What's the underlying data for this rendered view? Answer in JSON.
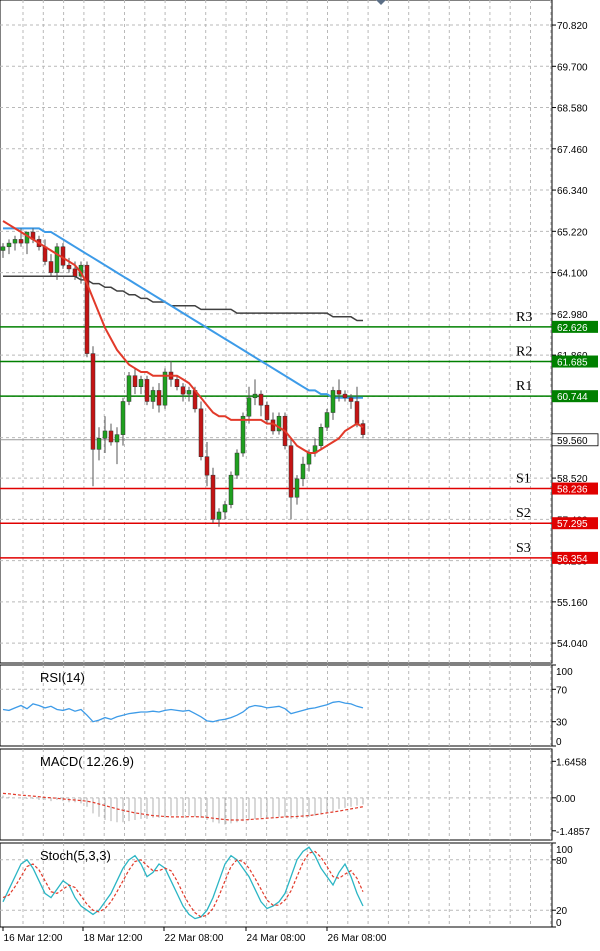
{
  "chart_data": [
    {
      "type": "candlestick",
      "grid": true,
      "y_ticks": [
        "70.820",
        "69.700",
        "68.580",
        "67.460",
        "66.340",
        "65.220",
        "64.100",
        "62.980",
        "61.860",
        "60.740",
        "59.620",
        "58.520",
        "57.400",
        "56.280",
        "55.160",
        "54.040"
      ],
      "ylim": [
        53.5,
        71.5
      ],
      "x_labels": [
        "16 Mar 12:00",
        "18 Mar 12:00",
        "22 Mar 08:00",
        "24 Mar 08:00",
        "26 Mar 08:00"
      ],
      "current_price": "59.560",
      "levels": [
        {
          "name": "R3",
          "value": "62.626",
          "color": "#008000"
        },
        {
          "name": "R2",
          "value": "61.685",
          "color": "#008000"
        },
        {
          "name": "R1",
          "value": "60.744",
          "color": "#008000"
        },
        {
          "name": "S1",
          "value": "58.236",
          "color": "#e00000"
        },
        {
          "name": "S2",
          "value": "57.295",
          "color": "#e00000"
        },
        {
          "name": "S3",
          "value": "56.354",
          "color": "#e00000"
        }
      ],
      "candles": [
        [
          64.7,
          64.9,
          64.5,
          64.8
        ],
        [
          64.8,
          65.0,
          64.6,
          64.9
        ],
        [
          64.9,
          65.1,
          64.7,
          65.0
        ],
        [
          65.0,
          65.3,
          64.8,
          64.9
        ],
        [
          64.9,
          65.1,
          64.6,
          65.2
        ],
        [
          65.2,
          65.3,
          64.9,
          65.0
        ],
        [
          65.0,
          65.1,
          64.7,
          64.8
        ],
        [
          64.8,
          65.0,
          64.3,
          64.4
        ],
        [
          64.4,
          64.6,
          64.0,
          64.1
        ],
        [
          64.1,
          64.9,
          63.9,
          64.8
        ],
        [
          64.8,
          64.9,
          64.2,
          64.3
        ],
        [
          64.3,
          64.5,
          64.1,
          64.2
        ],
        [
          64.2,
          64.4,
          63.9,
          64.0
        ],
        [
          64.0,
          64.4,
          63.8,
          64.3
        ],
        [
          64.3,
          64.4,
          61.8,
          61.9
        ],
        [
          61.9,
          62.1,
          58.3,
          59.3
        ],
        [
          59.3,
          59.9,
          59.0,
          59.6
        ],
        [
          59.6,
          60.2,
          59.2,
          59.8
        ],
        [
          59.8,
          60.0,
          59.4,
          59.5
        ],
        [
          59.5,
          59.9,
          58.9,
          59.7
        ],
        [
          59.7,
          60.7,
          59.4,
          60.6
        ],
        [
          60.6,
          61.4,
          60.5,
          61.3
        ],
        [
          61.3,
          61.5,
          60.8,
          61.0
        ],
        [
          61.0,
          61.3,
          60.8,
          61.2
        ],
        [
          61.2,
          61.3,
          60.5,
          60.6
        ],
        [
          60.6,
          61.0,
          60.4,
          60.9
        ],
        [
          60.9,
          61.1,
          60.3,
          60.5
        ],
        [
          60.5,
          61.5,
          60.4,
          61.4
        ],
        [
          61.4,
          61.7,
          61.0,
          61.2
        ],
        [
          61.2,
          61.3,
          60.9,
          61.0
        ],
        [
          61.0,
          61.1,
          60.6,
          60.8
        ],
        [
          60.8,
          61.0,
          60.6,
          60.9
        ],
        [
          60.9,
          61.0,
          60.3,
          60.4
        ],
        [
          60.4,
          60.6,
          59.0,
          59.1
        ],
        [
          59.1,
          59.5,
          58.3,
          58.6
        ],
        [
          58.6,
          58.8,
          57.3,
          57.4
        ],
        [
          57.4,
          57.7,
          57.2,
          57.6
        ],
        [
          57.6,
          57.9,
          57.4,
          57.8
        ],
        [
          57.8,
          58.7,
          57.7,
          58.6
        ],
        [
          58.6,
          59.3,
          58.5,
          59.2
        ],
        [
          59.2,
          60.3,
          59.1,
          60.2
        ],
        [
          60.2,
          61.0,
          60.0,
          60.7
        ],
        [
          60.7,
          61.2,
          60.5,
          60.8
        ],
        [
          60.8,
          60.9,
          60.2,
          60.5
        ],
        [
          60.5,
          60.6,
          60.0,
          60.1
        ],
        [
          60.1,
          60.3,
          59.7,
          59.8
        ],
        [
          59.8,
          60.3,
          59.7,
          60.2
        ],
        [
          60.2,
          60.3,
          59.3,
          59.4
        ],
        [
          59.4,
          59.6,
          57.4,
          58.0
        ],
        [
          58.0,
          58.6,
          57.8,
          58.5
        ],
        [
          58.5,
          59.1,
          58.3,
          58.9
        ],
        [
          58.9,
          59.3,
          58.7,
          59.2
        ],
        [
          59.2,
          59.6,
          59.1,
          59.4
        ],
        [
          59.4,
          60.0,
          59.3,
          59.9
        ],
        [
          59.9,
          60.4,
          59.8,
          60.3
        ],
        [
          60.3,
          61.0,
          60.1,
          60.9
        ],
        [
          60.9,
          61.2,
          60.6,
          60.8
        ],
        [
          60.8,
          60.9,
          60.6,
          60.7
        ],
        [
          60.7,
          60.8,
          60.4,
          60.6
        ],
        [
          60.6,
          61.0,
          59.9,
          60.0
        ],
        [
          60.0,
          60.1,
          59.6,
          59.7
        ]
      ],
      "ma_red": [
        65.5,
        65.4,
        65.3,
        65.2,
        65.1,
        65.0,
        64.9,
        64.8,
        64.7,
        64.6,
        64.5,
        64.4,
        64.3,
        64.1,
        63.8,
        63.4,
        63.0,
        62.6,
        62.3,
        62.0,
        61.8,
        61.6,
        61.5,
        61.4,
        61.4,
        61.3,
        61.3,
        61.3,
        61.3,
        61.3,
        61.2,
        61.1,
        60.9,
        60.7,
        60.5,
        60.3,
        60.2,
        60.2,
        60.1,
        60.1,
        60.1,
        60.1,
        60.1,
        60.1,
        60.0,
        60.0,
        59.9,
        59.8,
        59.6,
        59.4,
        59.3,
        59.2,
        59.2,
        59.3,
        59.4,
        59.5,
        59.6,
        59.8,
        59.9,
        60.0,
        59.9
      ],
      "ma_blue": [
        65.3,
        65.3,
        65.3,
        65.3,
        65.3,
        65.3,
        65.3,
        65.2,
        65.2,
        65.1,
        65.0,
        64.9,
        64.8,
        64.7,
        64.6,
        64.5,
        64.4,
        64.3,
        64.2,
        64.1,
        64.0,
        63.9,
        63.8,
        63.7,
        63.6,
        63.5,
        63.4,
        63.3,
        63.2,
        63.1,
        63.0,
        62.9,
        62.8,
        62.7,
        62.6,
        62.5,
        62.4,
        62.3,
        62.2,
        62.1,
        62.0,
        61.9,
        61.8,
        61.7,
        61.6,
        61.5,
        61.4,
        61.3,
        61.2,
        61.1,
        61.0,
        60.9,
        60.9,
        60.8,
        60.8,
        60.7,
        60.7,
        60.7,
        60.7,
        60.7,
        60.7
      ],
      "ma_dark": [
        64.0,
        64.0,
        64.0,
        64.0,
        64.0,
        64.0,
        64.0,
        64.0,
        64.0,
        64.0,
        64.0,
        64.0,
        64.0,
        63.9,
        63.9,
        63.8,
        63.8,
        63.7,
        63.7,
        63.6,
        63.6,
        63.5,
        63.5,
        63.4,
        63.4,
        63.3,
        63.3,
        63.3,
        63.2,
        63.2,
        63.2,
        63.2,
        63.2,
        63.1,
        63.1,
        63.1,
        63.1,
        63.1,
        63.1,
        63.0,
        63.0,
        63.0,
        63.0,
        63.0,
        63.0,
        63.0,
        63.0,
        63.0,
        63.0,
        63.0,
        63.0,
        63.0,
        63.0,
        63.0,
        63.0,
        62.9,
        62.9,
        62.9,
        62.9,
        62.8,
        62.8
      ]
    },
    {
      "type": "line",
      "title": "RSI(14)",
      "y_ticks": [
        "100",
        "70",
        "30",
        "0"
      ],
      "ylim": [
        0,
        100
      ],
      "values": [
        45,
        44,
        47,
        50,
        46,
        52,
        50,
        47,
        49,
        45,
        44,
        46,
        43,
        45,
        38,
        30,
        32,
        35,
        33,
        36,
        38,
        40,
        41,
        42,
        42,
        43,
        42,
        44,
        45,
        44,
        43,
        44,
        40,
        36,
        31,
        30,
        32,
        33,
        35,
        38,
        42,
        48,
        50,
        49,
        47,
        48,
        49,
        46,
        40,
        42,
        44,
        46,
        47,
        49,
        51,
        54,
        55,
        53,
        52,
        49,
        47
      ]
    },
    {
      "type": "histogram",
      "title": "MACD( 12.26.9)",
      "y_ticks": [
        "1.6458",
        "0.00",
        "-1.4857"
      ],
      "ylim": [
        -1.9,
        2.2
      ],
      "histogram": [
        0.1,
        0.05,
        0.0,
        0.0,
        -0.05,
        -0.05,
        -0.1,
        -0.1,
        -0.15,
        -0.1,
        -0.15,
        -0.2,
        -0.2,
        -0.25,
        -0.4,
        -0.7,
        -0.85,
        -1.0,
        -1.05,
        -1.1,
        -1.1,
        -1.05,
        -1.0,
        -0.95,
        -0.95,
        -0.9,
        -0.9,
        -0.85,
        -0.8,
        -0.8,
        -0.8,
        -0.8,
        -0.85,
        -0.9,
        -1.0,
        -1.1,
        -1.15,
        -1.2,
        -1.15,
        -1.1,
        -1.05,
        -1.0,
        -0.95,
        -0.9,
        -0.9,
        -0.9,
        -0.85,
        -0.85,
        -0.95,
        -0.95,
        -0.9,
        -0.85,
        -0.8,
        -0.75,
        -0.7,
        -0.6,
        -0.5,
        -0.45,
        -0.4,
        -0.35,
        -0.3
      ],
      "signal": [
        0.2,
        0.18,
        0.15,
        0.12,
        0.1,
        0.08,
        0.05,
        0.02,
        0.0,
        -0.02,
        -0.05,
        -0.08,
        -0.1,
        -0.12,
        -0.15,
        -0.2,
        -0.28,
        -0.35,
        -0.42,
        -0.5,
        -0.56,
        -0.62,
        -0.68,
        -0.72,
        -0.76,
        -0.8,
        -0.82,
        -0.84,
        -0.86,
        -0.86,
        -0.86,
        -0.85,
        -0.85,
        -0.86,
        -0.88,
        -0.92,
        -0.95,
        -0.98,
        -1.0,
        -1.0,
        -1.0,
        -0.98,
        -0.96,
        -0.94,
        -0.92,
        -0.9,
        -0.88,
        -0.86,
        -0.85,
        -0.84,
        -0.82,
        -0.8,
        -0.76,
        -0.72,
        -0.68,
        -0.64,
        -0.6,
        -0.55,
        -0.5,
        -0.45,
        -0.4
      ]
    },
    {
      "type": "line",
      "title": "Stoch(5,3,3)",
      "y_ticks": [
        "100",
        "80",
        "20",
        "0"
      ],
      "ylim": [
        0,
        100
      ],
      "main": [
        30,
        45,
        60,
        75,
        80,
        70,
        55,
        40,
        35,
        45,
        55,
        50,
        35,
        25,
        20,
        15,
        20,
        30,
        40,
        55,
        70,
        80,
        85,
        75,
        60,
        65,
        75,
        70,
        55,
        40,
        25,
        15,
        10,
        12,
        20,
        35,
        55,
        75,
        85,
        80,
        70,
        60,
        45,
        30,
        22,
        25,
        30,
        40,
        60,
        80,
        90,
        95,
        85,
        70,
        60,
        50,
        65,
        75,
        60,
        40,
        25
      ],
      "signal": [
        35,
        38,
        48,
        60,
        72,
        75,
        68,
        55,
        42,
        40,
        45,
        50,
        47,
        37,
        27,
        20,
        18,
        22,
        30,
        42,
        55,
        68,
        78,
        80,
        73,
        67,
        67,
        70,
        67,
        55,
        40,
        27,
        17,
        12,
        14,
        22,
        37,
        55,
        72,
        80,
        78,
        70,
        58,
        45,
        32,
        26,
        26,
        32,
        43,
        60,
        77,
        88,
        90,
        83,
        72,
        60,
        58,
        63,
        67,
        58,
        42
      ]
    }
  ]
}
